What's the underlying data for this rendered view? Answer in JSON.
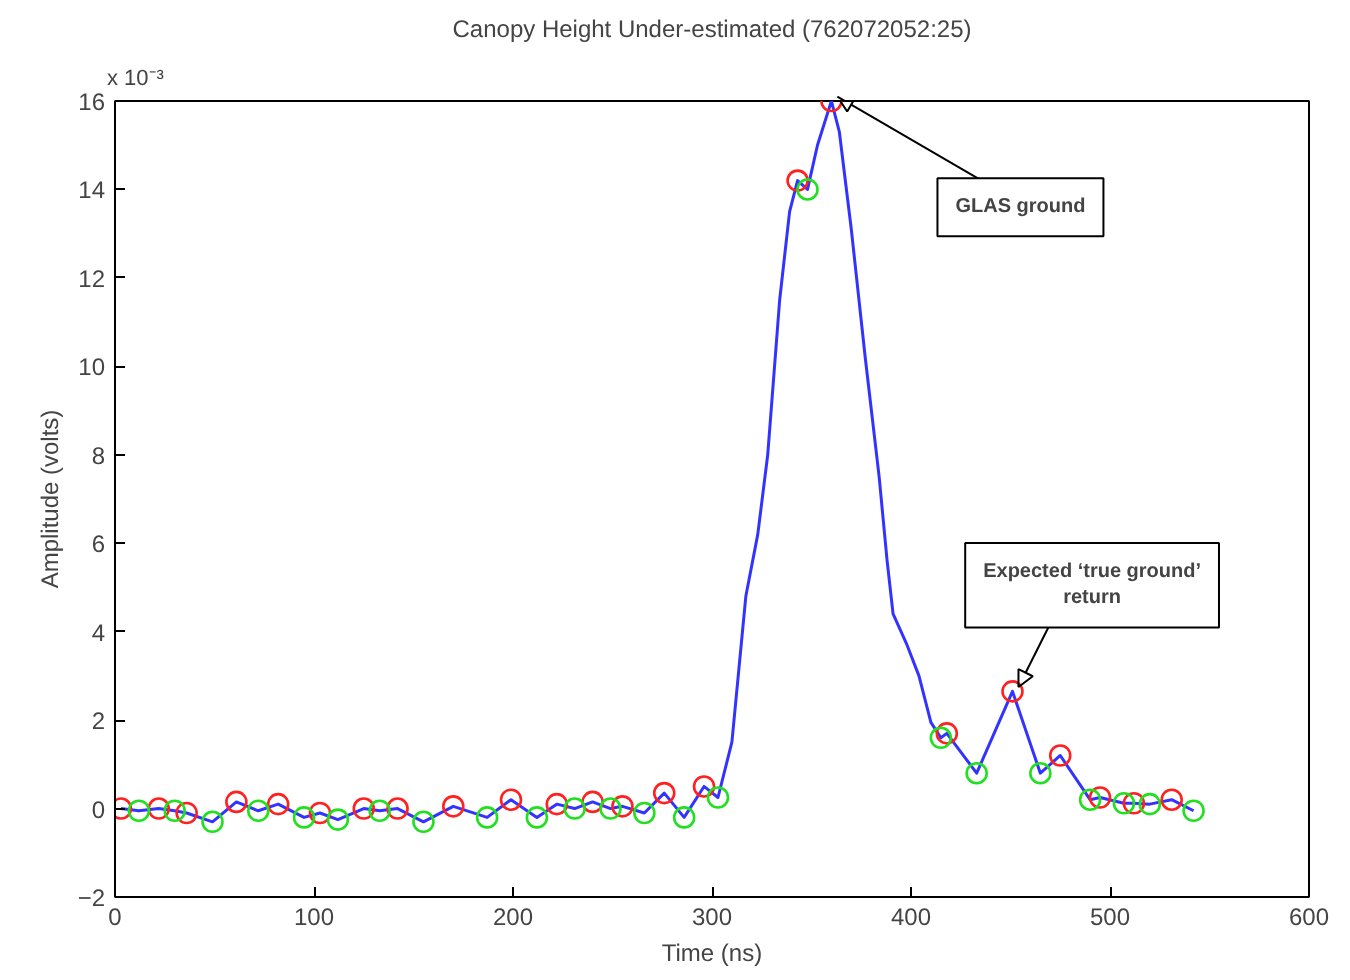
{
  "chart_data": {
    "type": "line",
    "title": "Canopy Height Under-estimated (762072052:25)",
    "xlabel": "Time (ns)",
    "ylabel": "Amplitude (volts)",
    "xlim": [
      0,
      600
    ],
    "xticks": [
      0,
      100,
      200,
      300,
      400,
      500,
      600
    ],
    "ylim": [
      -2,
      16
    ],
    "yticks": [
      -2,
      0,
      2,
      4,
      6,
      8,
      10,
      12,
      14,
      16
    ],
    "grid": false,
    "series": [
      {
        "color": "#3333ff",
        "marker": "none",
        "x": [
          3,
          12,
          22,
          30,
          36,
          49,
          61,
          72,
          82,
          95,
          103,
          112,
          125,
          133,
          142,
          155,
          170,
          187,
          199,
          212,
          222,
          231,
          240,
          249,
          255,
          266,
          276,
          286,
          296,
          303,
          310,
          317,
          323,
          328,
          334,
          339,
          343,
          348,
          353,
          360,
          364,
          370,
          377,
          384,
          388,
          391,
          398,
          404,
          410,
          415,
          418,
          433,
          451,
          465,
          475,
          490,
          495,
          507,
          512,
          520,
          531,
          542
        ],
        "values": [
          0,
          -0.05,
          0,
          -0.05,
          -0.1,
          -0.3,
          0.15,
          -0.05,
          0.1,
          -0.2,
          -0.1,
          -0.25,
          0,
          -0.05,
          0,
          -0.3,
          0.05,
          -0.2,
          0.2,
          -0.2,
          0.1,
          0,
          0.15,
          0,
          0.05,
          -0.1,
          0.35,
          -0.2,
          0.5,
          0.25,
          1.5,
          4.8,
          6.2,
          8.0,
          11.5,
          13.5,
          14.2,
          14.0,
          15.0,
          16.0,
          15.3,
          13.1,
          10.2,
          7.5,
          5.6,
          4.4,
          3.7,
          3.0,
          1.95,
          1.6,
          1.7,
          0.8,
          2.65,
          0.8,
          1.2,
          0.2,
          0.25,
          0.12,
          0.12,
          0.1,
          0.2,
          -0.05
        ]
      },
      {
        "type": "scatter",
        "color": "#ff2020",
        "marker": "circle",
        "x": [
          3,
          22,
          36,
          61,
          82,
          103,
          125,
          142,
          170,
          199,
          222,
          240,
          255,
          276,
          296,
          343,
          360,
          418,
          451,
          475,
          495,
          512,
          531
        ],
        "values": [
          0,
          0,
          -0.1,
          0.15,
          0.1,
          -0.1,
          0,
          0,
          0.05,
          0.2,
          0.1,
          0.15,
          0.05,
          0.35,
          0.5,
          14.2,
          16.0,
          1.7,
          2.65,
          1.2,
          0.25,
          0.12,
          0.2
        ]
      },
      {
        "type": "scatter",
        "color": "#20e020",
        "marker": "circle",
        "x": [
          12,
          30,
          49,
          72,
          95,
          112,
          133,
          155,
          187,
          212,
          231,
          249,
          266,
          286,
          303,
          348,
          415,
          433,
          465,
          490,
          507,
          520,
          542
        ],
        "values": [
          -0.05,
          -0.05,
          -0.3,
          -0.05,
          -0.2,
          -0.25,
          -0.05,
          -0.3,
          -0.2,
          -0.2,
          0,
          0,
          -0.1,
          -0.2,
          0.25,
          14.0,
          1.6,
          0.8,
          0.8,
          0.2,
          0.12,
          0.1,
          -0.05
        ]
      }
    ],
    "annotations": [
      "x 10⁻³",
      {
        "text": "GLAS ground",
        "x": 360,
        "y": 16.0
      },
      {
        "text": "Expected ‘true ground’\nreturn",
        "x": 451,
        "y": 2.65
      }
    ]
  }
}
